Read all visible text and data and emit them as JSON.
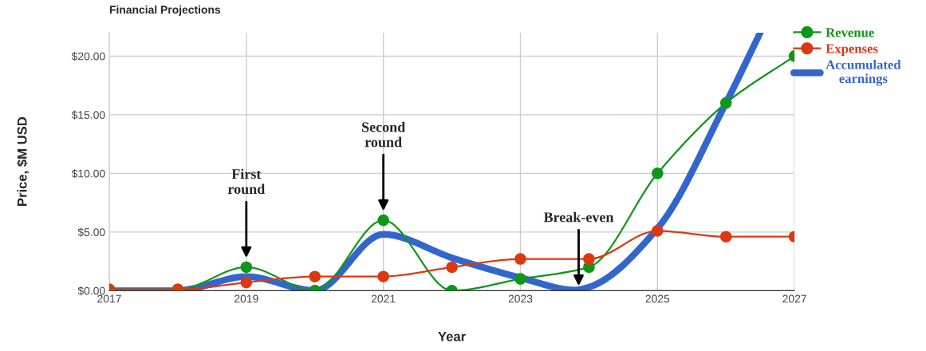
{
  "chart_data": {
    "type": "line",
    "title": "Financial Projections",
    "xlabel": "Year",
    "ylabel": "Price, $M USD",
    "xlim": [
      2017,
      2027
    ],
    "xticks": [
      2017,
      2019,
      2021,
      2023,
      2025,
      2027
    ],
    "ylim": [
      0,
      22
    ],
    "yticks": [
      {
        "value": 0,
        "label": "$0.00"
      },
      {
        "value": 5,
        "label": "$5.00"
      },
      {
        "value": 10,
        "label": "$10.00"
      },
      {
        "value": 15,
        "label": "$15.00"
      },
      {
        "value": 20,
        "label": "$20.00"
      }
    ],
    "grid": true,
    "legend": "top right",
    "series": [
      {
        "name": "Revenue",
        "color": "#109618",
        "marker": "circle",
        "x": [
          2017,
          2018,
          2019,
          2020,
          2021,
          2022,
          2023,
          2024,
          2025,
          2026,
          2027
        ],
        "values": [
          0.1,
          0.1,
          2,
          0,
          6,
          0,
          1,
          2,
          10,
          16,
          20
        ]
      },
      {
        "name": "Expenses",
        "color": "#dc3912",
        "marker": "circle",
        "x": [
          2017,
          2018,
          2019,
          2020,
          2021,
          2022,
          2023,
          2024,
          2025,
          2026,
          2027
        ],
        "values": [
          0.1,
          0.1,
          0.7,
          1.2,
          1.2,
          2,
          2.7,
          2.7,
          5.1,
          4.6,
          4.6
        ]
      },
      {
        "name": "Accumulated\nearnings",
        "color": "#3366cc",
        "marker": "none",
        "x": [
          2017,
          2018,
          2019,
          2020,
          2021,
          2022,
          2023,
          2023.8,
          2024,
          2025,
          2026,
          2026.5
        ],
        "values": [
          0,
          0,
          1.2,
          0,
          4.8,
          2.8,
          1.1,
          0.05,
          0.3,
          5.3,
          16,
          22
        ]
      }
    ],
    "annotations": [
      {
        "text": "First\nround",
        "x": 2019,
        "y": 2.8
      },
      {
        "text": "Second\nround",
        "x": 2021,
        "y": 6.8
      },
      {
        "text": "Break-even",
        "x": 2023.85,
        "y": 0.4
      }
    ]
  }
}
